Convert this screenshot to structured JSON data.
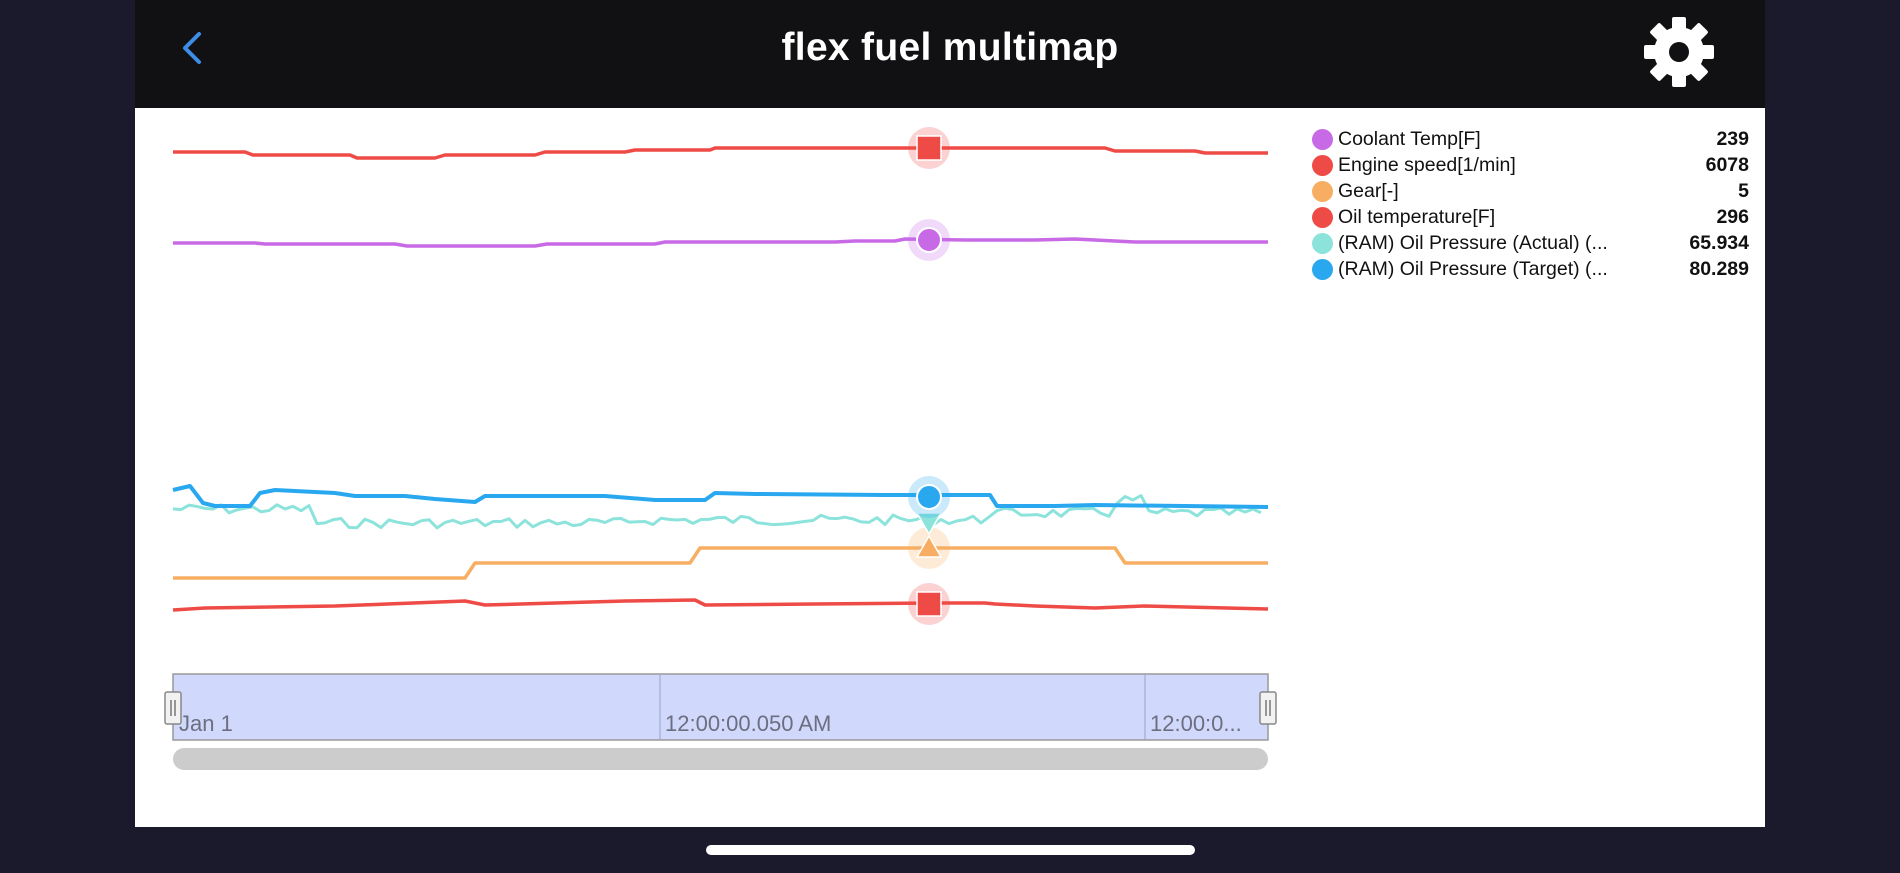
{
  "header": {
    "title": "flex fuel multimap",
    "back_icon": "chevron-left-icon",
    "settings_icon": "gear-icon"
  },
  "legend": [
    {
      "name": "Coolant Temp[F]",
      "value": "239",
      "color": "#c86ae6"
    },
    {
      "name": "Engine speed[1/min]",
      "value": "6078",
      "color": "#ef4b46"
    },
    {
      "name": "Gear[-]",
      "value": "5",
      "color": "#f7ae63"
    },
    {
      "name": "Oil temperature[F]",
      "value": "296",
      "color": "#ef4b46"
    },
    {
      "name": "(RAM) Oil Pressure (Actual) (...",
      "value": "65.934",
      "color": "#8ce3db"
    },
    {
      "name": "(RAM) Oil Pressure (Target) (...",
      "value": "80.289",
      "color": "#2aa8ef"
    }
  ],
  "navigator": {
    "labels": [
      "Jan 1",
      "12:00:00.050 AM",
      "12:00:0..."
    ],
    "window_color": "#d0d8fb",
    "scrollbar_color": "#cccccc"
  },
  "cursor": {
    "color_glow": "#f6d6d6"
  }
}
